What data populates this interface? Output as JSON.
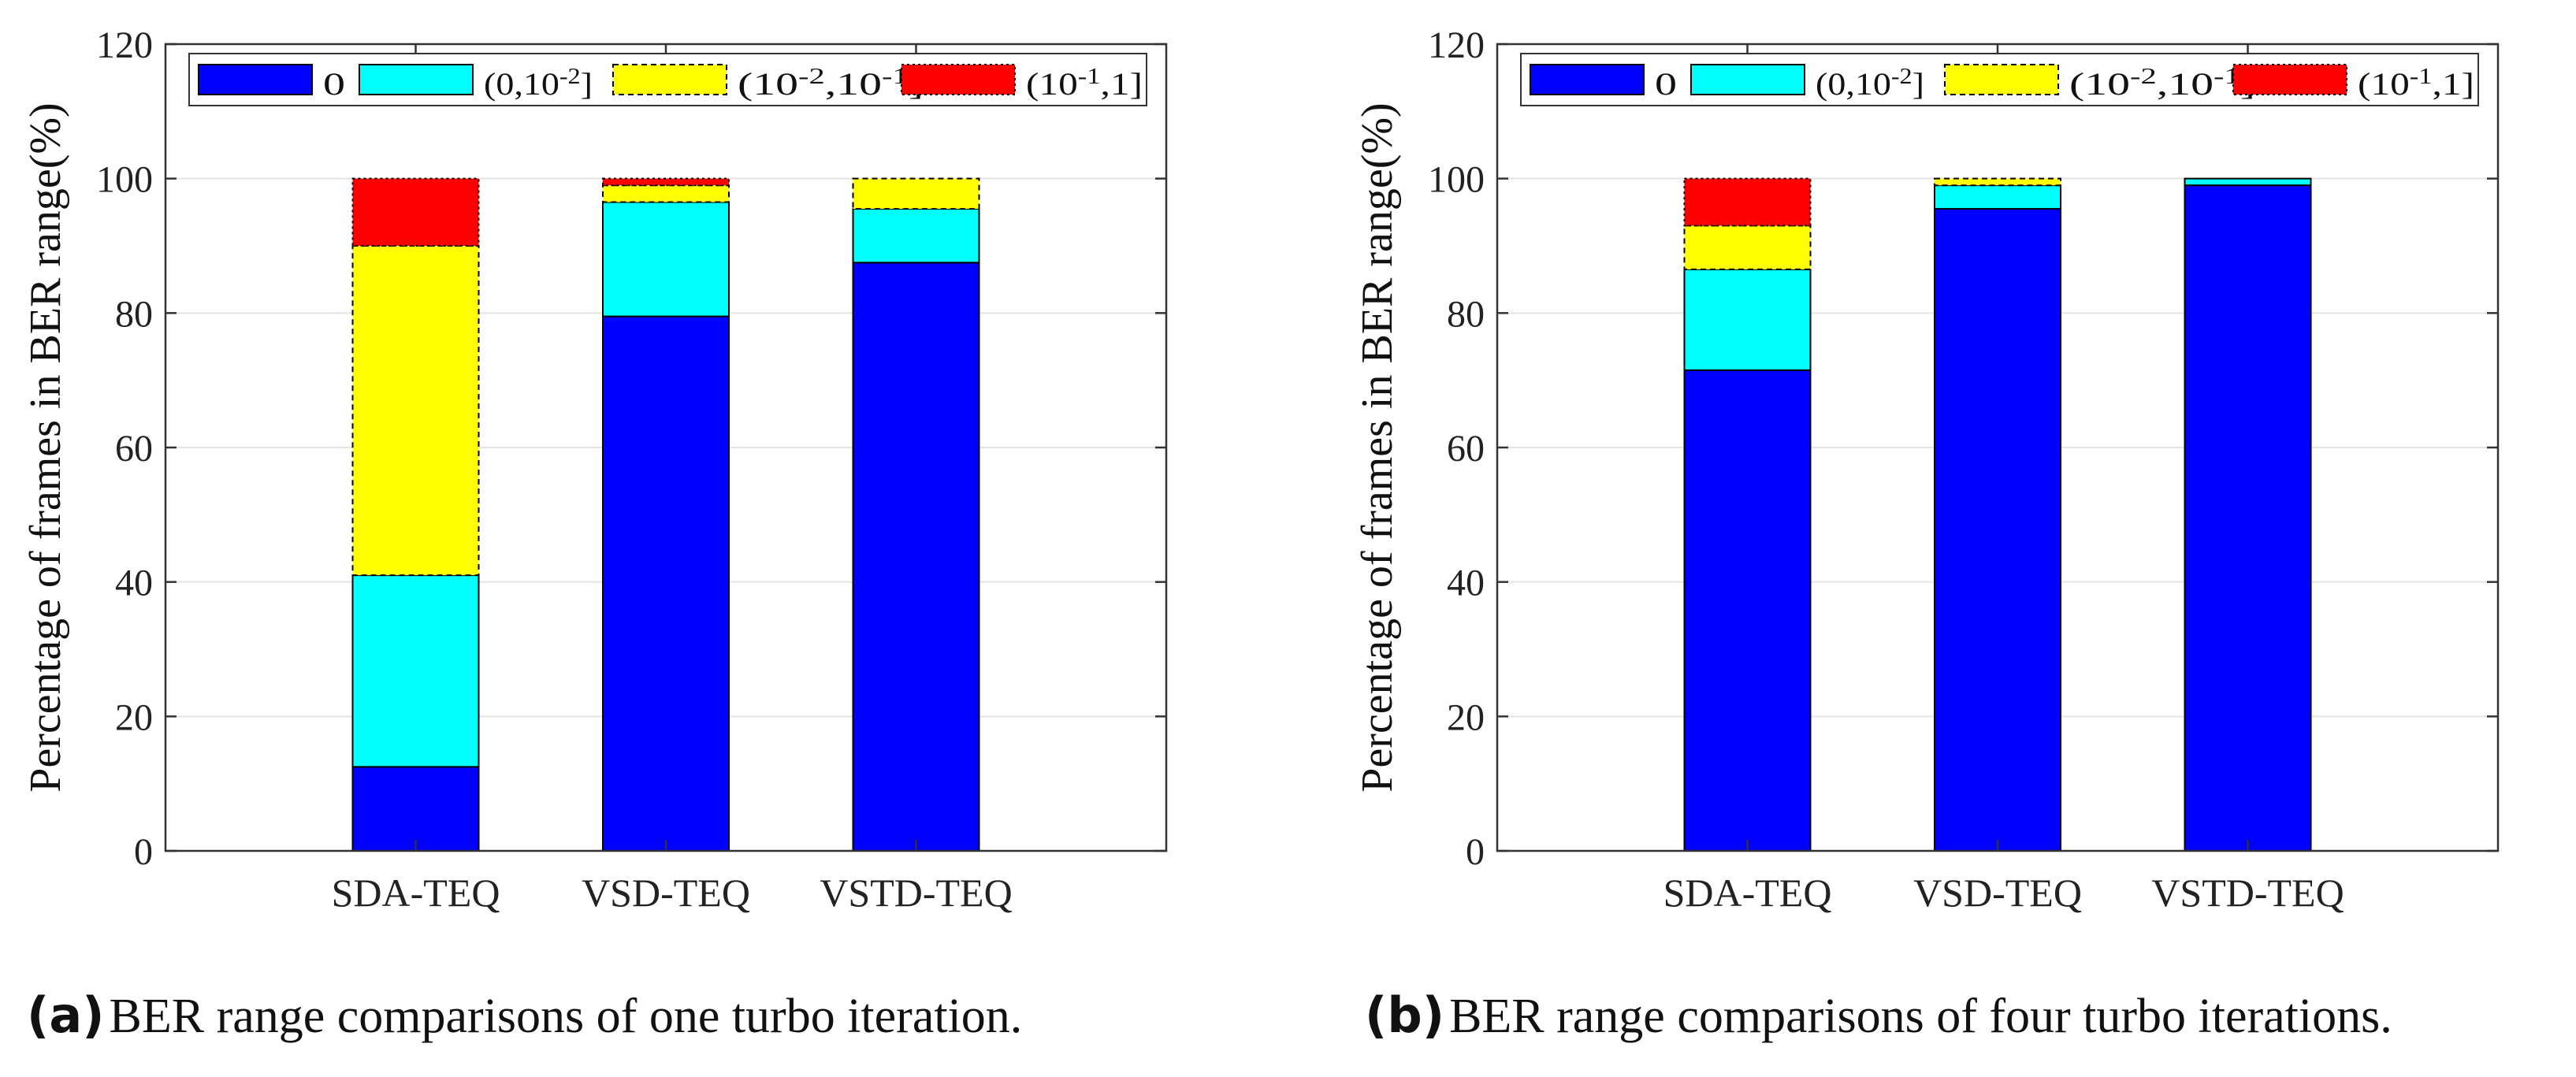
{
  "legend_entries": [
    {
      "key": "zero",
      "base": "0",
      "sup1": "",
      "mid": "",
      "sup2": "",
      "tail": ""
    },
    {
      "key": "low",
      "base": "(0,10",
      "sup1": "-2",
      "mid": "]",
      "sup2": "",
      "tail": ""
    },
    {
      "key": "mid",
      "base": "(10",
      "sup1": "-2",
      "mid": ",10",
      "sup2": "-1",
      "tail": "]"
    },
    {
      "key": "high",
      "base": "(10",
      "sup1": "-1",
      "mid": ",1]",
      "sup2": "",
      "tail": ""
    }
  ],
  "colors": {
    "zero": "#0000ff",
    "low": "#00ffff",
    "mid": "#ffff00",
    "high": "#ff0000"
  },
  "panels": [
    {
      "letter": "(a)",
      "caption": "BER range comparisons of one turbo iteration."
    },
    {
      "letter": "(b)",
      "caption": "BER range comparisons of four turbo iterations."
    }
  ],
  "chart_data": [
    {
      "type": "bar",
      "stacked": true,
      "title": "",
      "xlabel": "",
      "ylabel": "Percentage of frames in BER range(%)",
      "categories": [
        "SDA-TEQ",
        "VSD-TEQ",
        "VSTD-TEQ"
      ],
      "ylim": [
        0,
        120
      ],
      "yticks": [
        0,
        20,
        40,
        60,
        80,
        100,
        120
      ],
      "grid": true,
      "legend_position": "top",
      "series": [
        {
          "name": "0",
          "values": [
            12.5,
            79.5,
            87.5
          ]
        },
        {
          "name": "(0,10^-2]",
          "values": [
            28.5,
            17.0,
            8.0
          ]
        },
        {
          "name": "(10^-2,10^-1]",
          "values": [
            49.0,
            2.5,
            4.5
          ]
        },
        {
          "name": "(10^-1,1]",
          "values": [
            10.0,
            1.0,
            0.0
          ]
        }
      ]
    },
    {
      "type": "bar",
      "stacked": true,
      "title": "",
      "xlabel": "",
      "ylabel": "Percentage of frames in BER range(%)",
      "categories": [
        "SDA-TEQ",
        "VSD-TEQ",
        "VSTD-TEQ"
      ],
      "ylim": [
        0,
        120
      ],
      "yticks": [
        0,
        20,
        40,
        60,
        80,
        100,
        120
      ],
      "grid": true,
      "legend_position": "top",
      "series": [
        {
          "name": "0",
          "values": [
            71.5,
            95.5,
            99.0
          ]
        },
        {
          "name": "(0,10^-2]",
          "values": [
            15.0,
            3.5,
            1.0
          ]
        },
        {
          "name": "(10^-2,10^-1]",
          "values": [
            6.5,
            1.0,
            0.0
          ]
        },
        {
          "name": "(10^-1,1]",
          "values": [
            7.0,
            0.0,
            0.0
          ]
        }
      ]
    }
  ]
}
